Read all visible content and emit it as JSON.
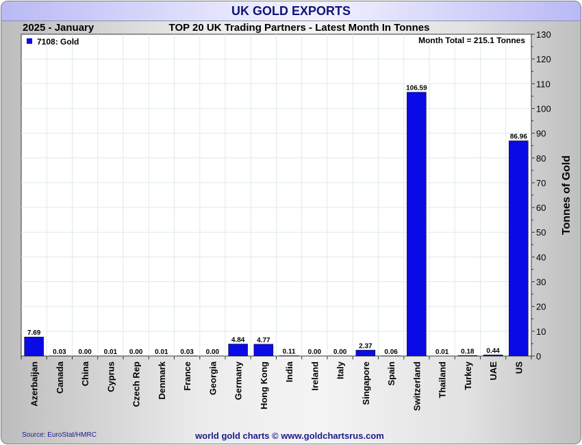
{
  "header": {
    "title": "UK GOLD EXPORTS",
    "period": "2025 - January",
    "subtitle": "TOP 20 UK Trading Partners - Latest Month In Tonnes",
    "month_total": "Month Total = 215.1 Tonnes"
  },
  "footer": {
    "source": "Source: EuroStat/HMRC",
    "credit": "world gold charts © www.goldchartsrus.com"
  },
  "colors": {
    "bar": "#0a0ae6",
    "title_text": "#12127a"
  },
  "chart_data": {
    "type": "bar",
    "title": "UK GOLD EXPORTS",
    "subtitle": "TOP 20 UK Trading Partners - Latest Month In Tonnes",
    "ylabel": "Tonnes of Gold",
    "xlabel": "",
    "ylim": [
      0,
      130
    ],
    "yticks": [
      0,
      10,
      20,
      30,
      40,
      50,
      60,
      70,
      80,
      90,
      100,
      110,
      120,
      130
    ],
    "y_axis_side": "right",
    "grid": true,
    "legend": {
      "position": "top-left",
      "entries": [
        "7108: Gold"
      ]
    },
    "categories": [
      "Azerbaijan",
      "Canada",
      "China",
      "Cyprus",
      "Czech Rep",
      "Denmark",
      "France",
      "Georgia",
      "Germany",
      "Hong Kong",
      "India",
      "Ireland",
      "Italy",
      "Singapore",
      "Spain",
      "Switzerland",
      "Thailand",
      "Turkey",
      "UAE",
      "US"
    ],
    "series": [
      {
        "name": "7108: Gold",
        "values": [
          7.69,
          0.03,
          0.0,
          0.01,
          0.0,
          0.01,
          0.03,
          0.0,
          4.84,
          4.77,
          0.11,
          0.0,
          0.0,
          2.37,
          0.06,
          106.59,
          0.01,
          0.18,
          0.44,
          86.96
        ],
        "labels": [
          "7.69",
          "0.03",
          "0.00",
          "0.01",
          "0.00",
          "0.01",
          "0.03",
          "0.00",
          "4.84",
          "4.77",
          "0.11",
          "0.00",
          "0.00",
          "2.37",
          "0.06",
          "106.59",
          "0.01",
          "0.18",
          "0.44",
          "86.96"
        ]
      }
    ]
  }
}
